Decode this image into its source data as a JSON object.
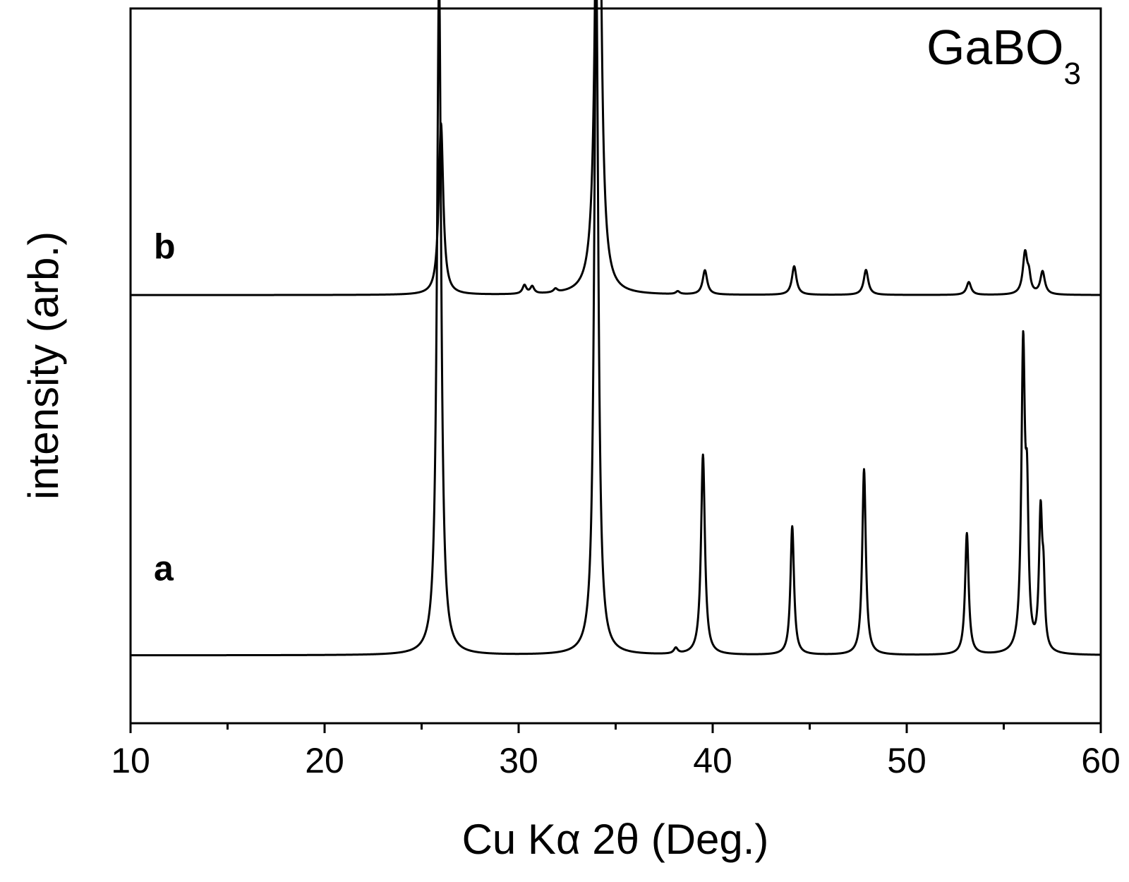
{
  "chart_data": {
    "type": "line",
    "title": "GaBO",
    "title_subscript": "3",
    "xlabel": "Cu Kα 2θ (Deg.)",
    "ylabel": "intensity (arb.)",
    "xlim": [
      10,
      60
    ],
    "ylim": [
      0,
      100
    ],
    "x_ticks": [
      10,
      20,
      30,
      40,
      50,
      60
    ],
    "x_minor_step": 5,
    "y_ticks_shown": false,
    "grid": false,
    "legend": "none",
    "line_color": "#000000",
    "series": [
      {
        "name": "a",
        "baseline": 9.5,
        "label_x": 11.2,
        "label_y": 20,
        "peaks": [
          {
            "x": 25.9,
            "h": 95,
            "w": 0.13
          },
          {
            "x": 34.0,
            "h": 96,
            "w": 0.13
          },
          {
            "x": 38.1,
            "h": 0.8,
            "w": 0.12
          },
          {
            "x": 39.5,
            "h": 28,
            "w": 0.12
          },
          {
            "x": 44.1,
            "h": 18,
            "w": 0.11
          },
          {
            "x": 47.8,
            "h": 26,
            "w": 0.11
          },
          {
            "x": 53.1,
            "h": 17,
            "w": 0.11
          },
          {
            "x": 56.0,
            "h": 42,
            "w": 0.11
          },
          {
            "x": 56.2,
            "h": 18,
            "w": 0.09
          },
          {
            "x": 56.9,
            "h": 19,
            "w": 0.1
          },
          {
            "x": 57.05,
            "h": 8,
            "w": 0.08
          }
        ]
      },
      {
        "name": "b",
        "baseline": 59.9,
        "label_x": 11.2,
        "label_y": 65,
        "peaks": [
          {
            "x": 26.0,
            "h": 24,
            "w": 0.14
          },
          {
            "x": 30.3,
            "h": 1.2,
            "w": 0.12
          },
          {
            "x": 30.7,
            "h": 1.0,
            "w": 0.12
          },
          {
            "x": 31.9,
            "h": 0.5,
            "w": 0.12
          },
          {
            "x": 34.1,
            "h": 94,
            "w": 0.15
          },
          {
            "x": 38.2,
            "h": 0.4,
            "w": 0.12
          },
          {
            "x": 39.6,
            "h": 3.4,
            "w": 0.14
          },
          {
            "x": 44.2,
            "h": 4.0,
            "w": 0.14
          },
          {
            "x": 47.9,
            "h": 3.5,
            "w": 0.14
          },
          {
            "x": 53.2,
            "h": 1.8,
            "w": 0.14
          },
          {
            "x": 56.1,
            "h": 5.8,
            "w": 0.14
          },
          {
            "x": 56.3,
            "h": 2.0,
            "w": 0.1
          },
          {
            "x": 57.0,
            "h": 3.2,
            "w": 0.14
          }
        ]
      }
    ]
  }
}
